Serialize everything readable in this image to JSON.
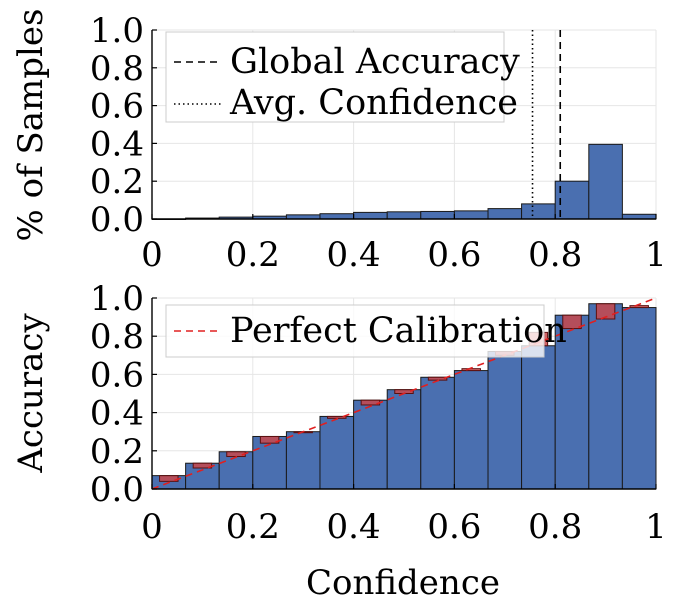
{
  "chart_data": [
    {
      "type": "bar",
      "subtype": "histogram",
      "ylabel": "% of Samples",
      "xlim": [
        0,
        1
      ],
      "ylim": [
        0,
        1
      ],
      "xticks": [
        "0",
        "0.2",
        "0.4",
        "0.6",
        "0.8",
        "1"
      ],
      "yticks": [
        "0.0",
        "0.2",
        "0.4",
        "0.6",
        "0.8",
        "1.0"
      ],
      "bin_edges": [
        0,
        0.0667,
        0.1333,
        0.2,
        0.2667,
        0.3333,
        0.4,
        0.4667,
        0.5333,
        0.6,
        0.6667,
        0.7333,
        0.8,
        0.8667,
        0.9333,
        1.0
      ],
      "values": [
        0.0,
        0.005,
        0.01,
        0.015,
        0.022,
        0.028,
        0.035,
        0.038,
        0.04,
        0.043,
        0.055,
        0.08,
        0.2,
        0.395,
        0.025
      ],
      "bar_color": "#4a6fb0",
      "reference_lines": [
        {
          "name": "Global Accuracy",
          "x": 0.81,
          "style": "dashed"
        },
        {
          "name": "Avg. Confidence",
          "x": 0.755,
          "style": "dotted"
        }
      ],
      "legend": "top-left"
    },
    {
      "type": "bar",
      "subtype": "reliability-diagram",
      "xlabel": "Confidence",
      "ylabel": "Accuracy",
      "xlim": [
        0,
        1
      ],
      "ylim": [
        0,
        1
      ],
      "xticks": [
        "0",
        "0.2",
        "0.4",
        "0.6",
        "0.8",
        "1"
      ],
      "yticks": [
        "0.0",
        "0.2",
        "0.4",
        "0.6",
        "0.8",
        "1.0"
      ],
      "bin_edges": [
        0,
        0.0667,
        0.1333,
        0.2,
        0.2667,
        0.3333,
        0.4,
        0.4667,
        0.5333,
        0.6,
        0.6667,
        0.7333,
        0.8,
        0.8667,
        0.9333,
        1.0
      ],
      "accuracy": [
        0.07,
        0.135,
        0.195,
        0.275,
        0.3,
        0.38,
        0.465,
        0.52,
        0.585,
        0.62,
        0.72,
        0.75,
        0.91,
        0.97,
        0.95
      ],
      "bin_confidence": [
        0.04,
        0.11,
        0.17,
        0.24,
        0.3,
        0.37,
        0.44,
        0.5,
        0.57,
        0.63,
        0.7,
        0.82,
        0.84,
        0.89,
        0.96
      ],
      "bar_color": "#4a6fb0",
      "gap_color": "#c8494c",
      "reference_lines": [
        {
          "name": "Perfect Calibration",
          "from": [
            0,
            0
          ],
          "to": [
            1,
            1
          ],
          "style": "dashed",
          "color": "#e02020"
        }
      ],
      "legend": "top-left"
    }
  ]
}
